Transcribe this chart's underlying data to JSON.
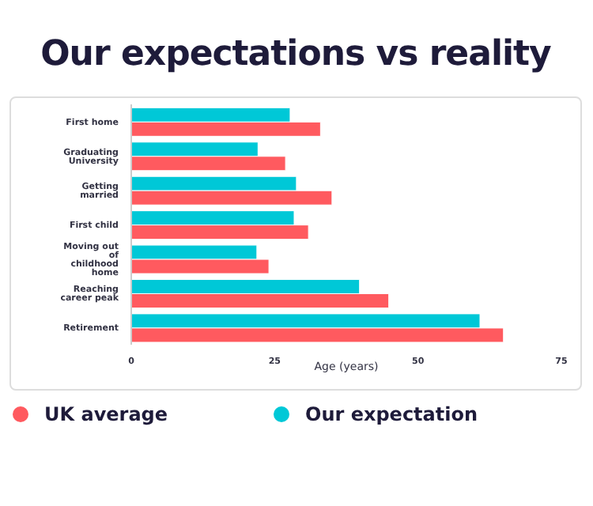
{
  "chart_data": {
    "type": "bar",
    "orientation": "horizontal",
    "title": "Our expectations vs reality",
    "xlabel": "Age (years)",
    "categories": [
      "First home",
      "Graduating University",
      "Getting married",
      "First child",
      "Moving out of childhood home",
      "Reaching career peak",
      "Retirement"
    ],
    "series": [
      {
        "name": "UK average",
        "color": "#ff5a5f",
        "values": [
          33.0,
          26.9,
          35.0,
          30.9,
          24.0,
          44.9,
          64.9
        ]
      },
      {
        "name": "Our expectation",
        "color": "#00c8d7",
        "values": [
          27.7,
          22.1,
          28.8,
          28.4,
          21.9,
          39.8,
          60.8
        ]
      }
    ],
    "xlim": [
      0,
      75
    ],
    "xticks": [
      0,
      25,
      50,
      75
    ],
    "grid": false,
    "legend": "bottom"
  }
}
